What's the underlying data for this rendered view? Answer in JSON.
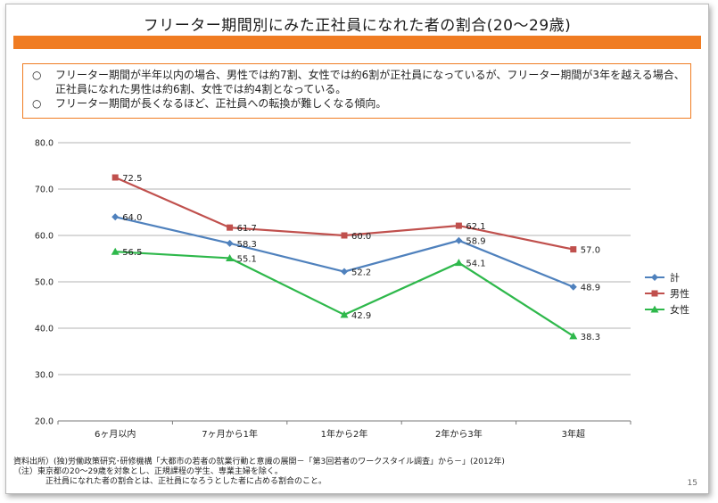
{
  "slide": {
    "title": "フリーター期間別にみた正社員になれた者の割合(20～29歳)",
    "bullets": [
      {
        "mark": "○",
        "text": "フリーター期間が半年以内の場合、男性では約7割、女性では約6割が正社員になっているが、フリーター期間が3年を越える場合、正社員になれた男性は約6割、女性では約4割となっている。"
      },
      {
        "mark": "○",
        "text": "フリーター期間が長くなるほど、正社員への転換が難しくなる傾向。"
      }
    ],
    "notes": [
      "資料出所）(独)労働政策研究･研修機構「大都市の若者の就業行動と意識の展開－「第3回若者のワークスタイル調査」から－」(2012年)",
      "（注）東京都の20～29歳を対象とし、正規課程の学生、専業主婦を除く。",
      "正社員になれた者の割合とは、正社員になろうとした者に占める割合のこと。"
    ],
    "page_number": "15",
    "accent_color": "#f07c22"
  },
  "chart_data": {
    "type": "line",
    "categories": [
      "6ヶ月以内",
      "7ヶ月から1年",
      "1年から2年",
      "2年から3年",
      "3年超"
    ],
    "series": [
      {
        "name": "計",
        "values": [
          64.0,
          58.3,
          52.2,
          58.9,
          48.9
        ],
        "color": "#4f81bd",
        "marker": "diamond"
      },
      {
        "name": "男性",
        "values": [
          72.5,
          61.7,
          60.0,
          62.1,
          57.0
        ],
        "color": "#c0504d",
        "marker": "square"
      },
      {
        "name": "女性",
        "values": [
          56.5,
          55.1,
          42.9,
          54.1,
          38.3
        ],
        "color": "#2eb84b",
        "marker": "triangle"
      }
    ],
    "ylim": [
      20.0,
      80.0
    ],
    "yticks": [
      "20.0",
      "30.0",
      "40.0",
      "50.0",
      "60.0",
      "70.0",
      "80.0"
    ],
    "grid": true,
    "legend": "right",
    "data_labels": true
  }
}
